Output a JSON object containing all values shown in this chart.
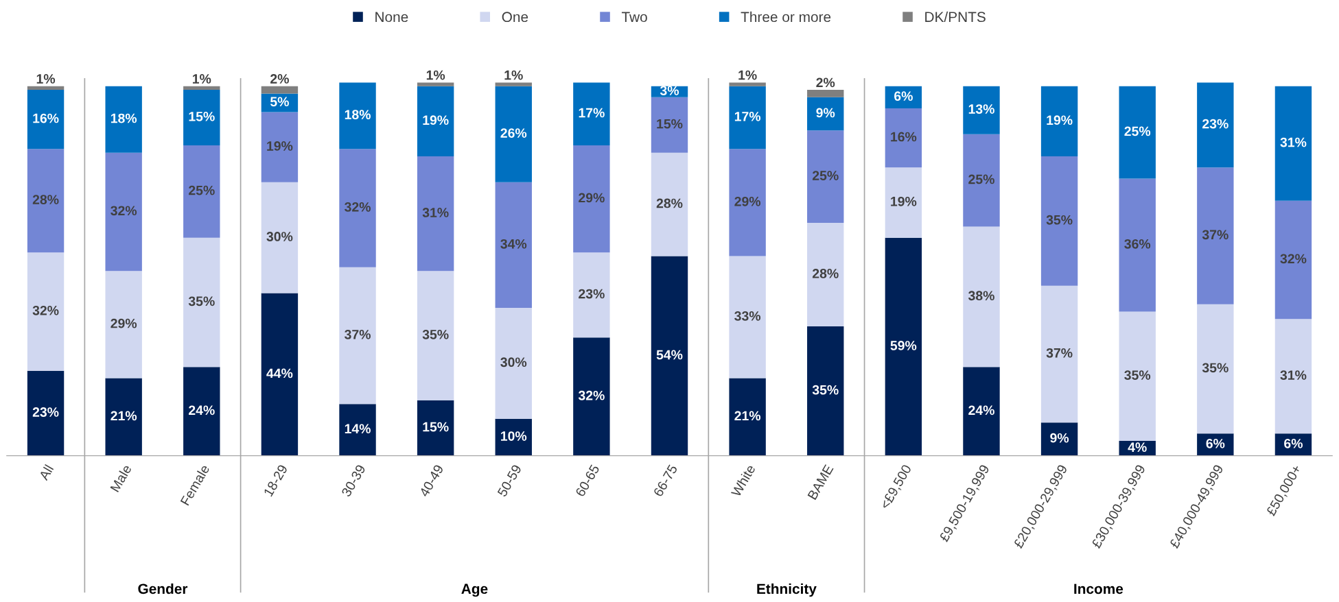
{
  "chart_data": {
    "type": "bar",
    "stacked": true,
    "legend": "top",
    "categories": [
      "All",
      "Male",
      "Female",
      "18-29",
      "30-39",
      "40-49",
      "50-59",
      "60-65",
      "66-75",
      "White",
      "BAME",
      "<£9,500",
      "£9,500-19,999",
      "£20,000-29,999",
      "£30,000-39,999",
      "£40,000-49,999",
      "£50,000+"
    ],
    "series": [
      {
        "name": "None",
        "color": "#002157",
        "values": [
          23,
          21,
          24,
          44,
          14,
          15,
          10,
          32,
          54,
          21,
          35,
          59,
          24,
          9,
          4,
          6,
          6
        ],
        "value_labels": [
          "23%",
          "21%",
          "24%",
          "44%",
          "14%",
          "15%",
          "10%",
          "32%",
          "54%",
          "21%",
          "35%",
          "59%",
          "24%",
          "9%",
          "4%",
          "6%",
          "6%"
        ]
      },
      {
        "name": "One",
        "color": "#d0d7f0",
        "values": [
          32,
          29,
          35,
          30,
          37,
          35,
          30,
          23,
          28,
          33,
          28,
          19,
          38,
          37,
          35,
          35,
          31
        ],
        "value_labels": [
          "32%",
          "29%",
          "35%",
          "30%",
          "37%",
          "35%",
          "30%",
          "23%",
          "28%",
          "33%",
          "28%",
          "19%",
          "38%",
          "37%",
          "35%",
          "35%",
          "31%"
        ]
      },
      {
        "name": "Two",
        "color": "#7386d5",
        "values": [
          28,
          32,
          25,
          19,
          32,
          31,
          34,
          29,
          15,
          29,
          25,
          16,
          25,
          35,
          36,
          37,
          32
        ],
        "value_labels": [
          "28%",
          "32%",
          "25%",
          "19%",
          "32%",
          "31%",
          "34%",
          "29%",
          "15%",
          "29%",
          "25%",
          "16%",
          "25%",
          "35%",
          "36%",
          "37%",
          "32%"
        ]
      },
      {
        "name": "Three or more",
        "color": "#0070c0",
        "values": [
          16,
          18,
          15,
          5,
          18,
          19,
          26,
          17,
          3,
          17,
          9,
          6,
          13,
          19,
          25,
          23,
          31
        ],
        "value_labels": [
          "16%",
          "18%",
          "15%",
          "5%",
          "18%",
          "19%",
          "26%",
          "17%",
          "3%",
          "17%",
          "9%",
          "6%",
          "13%",
          "19%",
          "25%",
          "23%",
          "31%"
        ]
      },
      {
        "name": "DK/PNTS",
        "color": "#7f7f7f",
        "values": [
          1,
          null,
          1,
          2,
          null,
          1,
          1,
          null,
          null,
          1,
          2,
          null,
          null,
          null,
          null,
          null,
          null
        ],
        "value_labels": [
          "1%",
          null,
          "1%",
          "2%",
          null,
          "1%",
          "1%",
          null,
          null,
          "1%",
          "2%",
          null,
          null,
          null,
          null,
          null,
          null
        ]
      }
    ],
    "annotations": [
      "Gender",
      "Age",
      "Ethnicity",
      "Income"
    ]
  }
}
